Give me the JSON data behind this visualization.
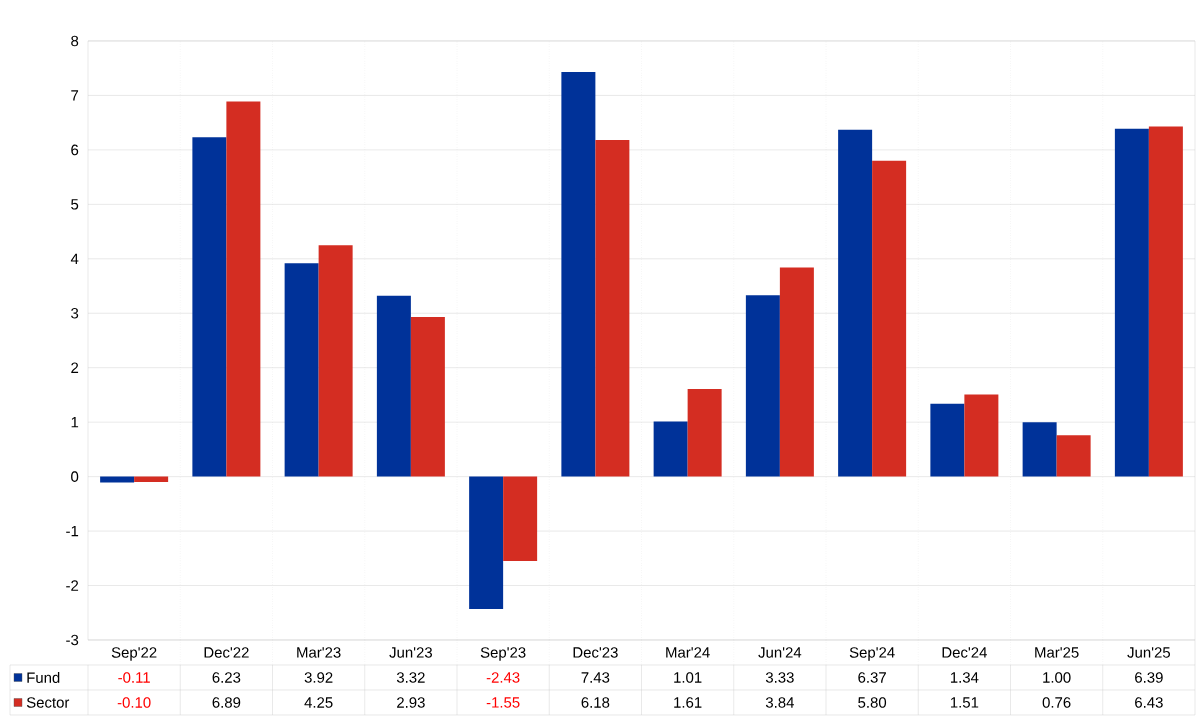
{
  "chart_data": {
    "type": "bar",
    "categories": [
      "Sep'22",
      "Dec'22",
      "Mar'23",
      "Jun'23",
      "Sep'23",
      "Dec'23",
      "Mar'24",
      "Jun'24",
      "Sep'24",
      "Dec'24",
      "Mar'25",
      "Jun'25"
    ],
    "series": [
      {
        "name": "Fund",
        "color": "#003299",
        "values": [
          -0.11,
          6.23,
          3.92,
          3.32,
          -2.43,
          7.43,
          1.01,
          3.33,
          6.37,
          1.34,
          1.0,
          6.39
        ],
        "value_labels": [
          "-0.11",
          "6.23",
          "3.92",
          "3.32",
          "-2.43",
          "7.43",
          "1.01",
          "3.33",
          "6.37",
          "1.34",
          "1.00",
          "6.39"
        ]
      },
      {
        "name": "Sector",
        "color": "#d42d22",
        "values": [
          -0.1,
          6.89,
          4.25,
          2.93,
          -1.55,
          6.18,
          1.61,
          3.84,
          5.8,
          1.51,
          0.76,
          6.43
        ],
        "value_labels": [
          "-0.10",
          "6.89",
          "4.25",
          "2.93",
          "-1.55",
          "6.18",
          "1.61",
          "3.84",
          "5.80",
          "1.51",
          "0.76",
          "6.43"
        ]
      }
    ],
    "ylim": [
      -3,
      8
    ],
    "yticks": [
      -3,
      -2,
      -1,
      0,
      1,
      2,
      3,
      4,
      5,
      6,
      7,
      8
    ],
    "grid": true,
    "legend": "bottom"
  }
}
